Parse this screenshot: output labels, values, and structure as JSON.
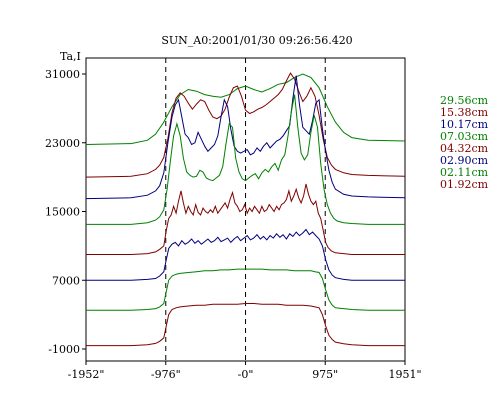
{
  "chart_data": {
    "type": "line",
    "title": "SUN_A0:2001/01/30 09:26:56.420",
    "ylabel": "Ta,I",
    "xlim": [
      -1952,
      1951
    ],
    "ylim": [
      -1000,
      31000
    ],
    "x_ticks": [
      {
        "value": -1952,
        "label": "-1952\""
      },
      {
        "value": -976,
        "label": "-976\""
      },
      {
        "value": 0,
        "label": "-0\""
      },
      {
        "value": 975,
        "label": "975\""
      },
      {
        "value": 1951,
        "label": "1951\""
      }
    ],
    "y_ticks": [
      {
        "value": 31000,
        "label": "31000"
      },
      {
        "value": 23000,
        "label": "23000"
      },
      {
        "value": 15000,
        "label": "15000"
      },
      {
        "value": 7000,
        "label": "7000"
      },
      {
        "value": -1000,
        "label": "-1000"
      }
    ],
    "vlines": [
      -976,
      0,
      975
    ],
    "legend_position": "right",
    "series": [
      {
        "name": "29.56cm",
        "color": "#008000",
        "x": [
          -1952,
          -1400,
          -1200,
          -1100,
          -1000,
          -900,
          -800,
          -700,
          -600,
          -500,
          -400,
          -300,
          -200,
          -100,
          0,
          100,
          200,
          300,
          400,
          500,
          600,
          700,
          800,
          900,
          1000,
          1100,
          1200,
          1300,
          1500,
          1951
        ],
        "y": [
          22800,
          22900,
          23300,
          24000,
          25400,
          27200,
          28600,
          29200,
          29000,
          28600,
          28400,
          28300,
          28600,
          29300,
          29600,
          29200,
          28900,
          29300,
          29800,
          30000,
          30600,
          31000,
          30600,
          29400,
          27200,
          25400,
          24200,
          23600,
          23300,
          23200
        ]
      },
      {
        "name": "15.38cm",
        "color": "#800000",
        "x": [
          -1952,
          -1400,
          -1200,
          -1100,
          -1050,
          -1000,
          -950,
          -900,
          -850,
          -800,
          -750,
          -700,
          -650,
          -600,
          -550,
          -500,
          -450,
          -400,
          -350,
          -300,
          -250,
          -200,
          -150,
          -100,
          -50,
          0,
          50,
          100,
          150,
          200,
          250,
          300,
          350,
          400,
          450,
          500,
          550,
          600,
          650,
          700,
          750,
          800,
          850,
          900,
          950,
          1000,
          1050,
          1100,
          1200,
          1300,
          1500,
          1951
        ],
        "y": [
          19000,
          19100,
          19400,
          19900,
          20400,
          21300,
          23500,
          26500,
          28200,
          28800,
          28400,
          27600,
          26900,
          27500,
          28000,
          27800,
          26800,
          26000,
          25800,
          26100,
          26900,
          28300,
          29400,
          29600,
          28400,
          26800,
          26400,
          26600,
          26900,
          27100,
          27400,
          27800,
          28200,
          28600,
          29200,
          30200,
          31100,
          30400,
          29000,
          27800,
          28400,
          29400,
          28400,
          26200,
          23400,
          21300,
          20400,
          19900,
          19500,
          19300,
          19200,
          19100
        ]
      },
      {
        "name": "10.17cm",
        "color": "#000080",
        "x": [
          -1952,
          -1400,
          -1200,
          -1100,
          -1050,
          -1000,
          -950,
          -900,
          -860,
          -820,
          -780,
          -740,
          -700,
          -660,
          -620,
          -580,
          -540,
          -500,
          -460,
          -420,
          -380,
          -340,
          -300,
          -260,
          -220,
          -180,
          -140,
          -100,
          -60,
          -20,
          20,
          60,
          100,
          140,
          180,
          220,
          260,
          300,
          340,
          380,
          420,
          460,
          500,
          540,
          580,
          620,
          660,
          700,
          740,
          780,
          820,
          860,
          900,
          940,
          980,
          1020,
          1060,
          1100,
          1200,
          1300,
          1500,
          1951
        ],
        "y": [
          16500,
          16600,
          16900,
          17400,
          18000,
          19500,
          23000,
          26000,
          27400,
          28000,
          26000,
          24000,
          23600,
          22800,
          23000,
          24200,
          23400,
          22600,
          22000,
          22400,
          22800,
          23800,
          26000,
          28000,
          27200,
          24600,
          22600,
          22000,
          21800,
          22000,
          22200,
          21600,
          21800,
          22400,
          22000,
          22600,
          23000,
          22400,
          22800,
          23200,
          23400,
          23800,
          24400,
          25000,
          28200,
          30800,
          27400,
          24800,
          24400,
          24000,
          25600,
          27600,
          28000,
          24600,
          22000,
          19800,
          18400,
          17600,
          17000,
          16800,
          16700,
          16600
        ]
      },
      {
        "name": "07.03cm",
        "color": "#008000",
        "x": [
          -1952,
          -1400,
          -1200,
          -1100,
          -1050,
          -1000,
          -960,
          -920,
          -880,
          -840,
          -800,
          -760,
          -720,
          -680,
          -640,
          -600,
          -560,
          -520,
          -480,
          -440,
          -400,
          -360,
          -320,
          -280,
          -240,
          -200,
          -160,
          -120,
          -80,
          -40,
          0,
          40,
          80,
          120,
          160,
          200,
          240,
          280,
          320,
          360,
          400,
          440,
          480,
          520,
          560,
          600,
          640,
          680,
          720,
          760,
          800,
          840,
          880,
          920,
          960,
          1000,
          1040,
          1080,
          1120,
          1200,
          1300,
          1500,
          1951
        ],
        "y": [
          13500,
          13500,
          13700,
          14000,
          14400,
          15200,
          17600,
          20800,
          23800,
          25200,
          23800,
          21200,
          19600,
          19200,
          19000,
          19100,
          19800,
          19600,
          18900,
          18700,
          18600,
          18900,
          19200,
          20200,
          22800,
          25200,
          24800,
          21200,
          19600,
          18800,
          18600,
          18900,
          19200,
          19400,
          18800,
          19500,
          19900,
          19600,
          20200,
          20600,
          19800,
          21000,
          21600,
          23800,
          26600,
          28600,
          24800,
          21800,
          21000,
          21600,
          24200,
          26200,
          24800,
          20600,
          17600,
          15800,
          14800,
          14200,
          13900,
          13700,
          13600,
          13500,
          13500
        ]
      },
      {
        "name": "04.32cm",
        "color": "#800000",
        "x": [
          -1952,
          -1400,
          -1200,
          -1100,
          -1050,
          -1000,
          -970,
          -940,
          -910,
          -880,
          -850,
          -820,
          -790,
          -760,
          -730,
          -700,
          -670,
          -640,
          -610,
          -580,
          -550,
          -520,
          -490,
          -460,
          -430,
          -400,
          -370,
          -340,
          -310,
          -280,
          -250,
          -220,
          -190,
          -160,
          -130,
          -100,
          -70,
          -40,
          -10,
          20,
          50,
          80,
          110,
          140,
          170,
          200,
          230,
          260,
          290,
          320,
          350,
          380,
          410,
          440,
          470,
          500,
          530,
          560,
          590,
          620,
          650,
          680,
          710,
          740,
          770,
          800,
          830,
          860,
          890,
          920,
          950,
          980,
          1010,
          1050,
          1100,
          1200,
          1300,
          1500,
          1951
        ],
        "y": [
          10000,
          10000,
          10100,
          10300,
          10600,
          11000,
          12800,
          14200,
          14600,
          15600,
          14800,
          16200,
          17400,
          16000,
          14800,
          15600,
          15000,
          14600,
          15800,
          14900,
          14600,
          15400,
          15000,
          14800,
          15200,
          14900,
          15600,
          14800,
          15200,
          15600,
          16000,
          15400,
          16400,
          17200,
          16000,
          15600,
          15000,
          15200,
          15800,
          14800,
          15400,
          15000,
          15600,
          15200,
          14800,
          15600,
          15000,
          15200,
          15800,
          15400,
          15000,
          15600,
          15200,
          15800,
          16000,
          16400,
          17400,
          16200,
          16800,
          17600,
          16600,
          16000,
          16800,
          18200,
          17000,
          16200,
          15800,
          16200,
          14800,
          14200,
          12800,
          11400,
          10800,
          10400,
          10200,
          10100,
          10000,
          10000,
          10000
        ]
      },
      {
        "name": "02.90cm",
        "color": "#000080",
        "x": [
          -1952,
          -1400,
          -1200,
          -1100,
          -1050,
          -1000,
          -970,
          -940,
          -900,
          -860,
          -820,
          -780,
          -740,
          -700,
          -660,
          -620,
          -580,
          -540,
          -500,
          -460,
          -420,
          -380,
          -340,
          -300,
          -260,
          -220,
          -180,
          -140,
          -100,
          -60,
          -20,
          20,
          60,
          100,
          140,
          180,
          220,
          260,
          300,
          340,
          380,
          420,
          460,
          500,
          540,
          580,
          620,
          660,
          700,
          740,
          780,
          820,
          860,
          900,
          940,
          980,
          1020,
          1060,
          1100,
          1200,
          1300,
          1500,
          1951
        ],
        "y": [
          7000,
          7000,
          7100,
          7200,
          7500,
          8000,
          9400,
          10700,
          11200,
          11400,
          11000,
          11600,
          11200,
          11400,
          11800,
          11300,
          11600,
          11200,
          11500,
          11800,
          11400,
          11600,
          12000,
          11500,
          11700,
          11900,
          11400,
          11800,
          12100,
          11600,
          11900,
          12200,
          11700,
          11900,
          12300,
          11800,
          12100,
          11700,
          12200,
          11900,
          12400,
          12000,
          12300,
          11800,
          12400,
          12100,
          12600,
          12200,
          12500,
          12900,
          12300,
          12600,
          12200,
          11800,
          11000,
          9400,
          8200,
          7600,
          7300,
          7100,
          7000,
          7000,
          7000
        ]
      },
      {
        "name": "02.11cm",
        "color": "#008000",
        "x": [
          -1952,
          -1400,
          -1200,
          -1100,
          -1050,
          -1000,
          -970,
          -940,
          -900,
          -850,
          -800,
          -700,
          -600,
          -500,
          -400,
          -300,
          -200,
          -100,
          0,
          100,
          200,
          300,
          400,
          500,
          600,
          700,
          800,
          850,
          900,
          940,
          980,
          1020,
          1060,
          1100,
          1200,
          1300,
          1500,
          1951
        ],
        "y": [
          3500,
          3500,
          3600,
          3700,
          3900,
          4300,
          5700,
          7000,
          7500,
          7700,
          7800,
          7900,
          8000,
          8100,
          8100,
          8200,
          8200,
          8300,
          8300,
          8300,
          8300,
          8200,
          8200,
          8200,
          8100,
          8100,
          8100,
          8000,
          7900,
          7200,
          5900,
          4700,
          4100,
          3800,
          3700,
          3600,
          3500,
          3500
        ]
      },
      {
        "name": "01.92cm",
        "color": "#800000",
        "x": [
          -1952,
          -1400,
          -1200,
          -1100,
          -1050,
          -1000,
          -970,
          -940,
          -900,
          -850,
          -800,
          -700,
          -600,
          -500,
          -400,
          -300,
          -200,
          -100,
          0,
          100,
          200,
          300,
          400,
          500,
          600,
          700,
          800,
          850,
          900,
          940,
          980,
          1020,
          1060,
          1100,
          1200,
          1300,
          1500,
          1951
        ],
        "y": [
          -600,
          -600,
          -500,
          -350,
          -100,
          300,
          1700,
          3000,
          3600,
          3800,
          3900,
          4000,
          4100,
          4100,
          4200,
          4200,
          4200,
          4200,
          4300,
          4300,
          4200,
          4200,
          4200,
          4100,
          4100,
          4100,
          4000,
          3900,
          3800,
          3000,
          1700,
          600,
          100,
          -200,
          -400,
          -500,
          -600,
          -600
        ]
      }
    ]
  }
}
